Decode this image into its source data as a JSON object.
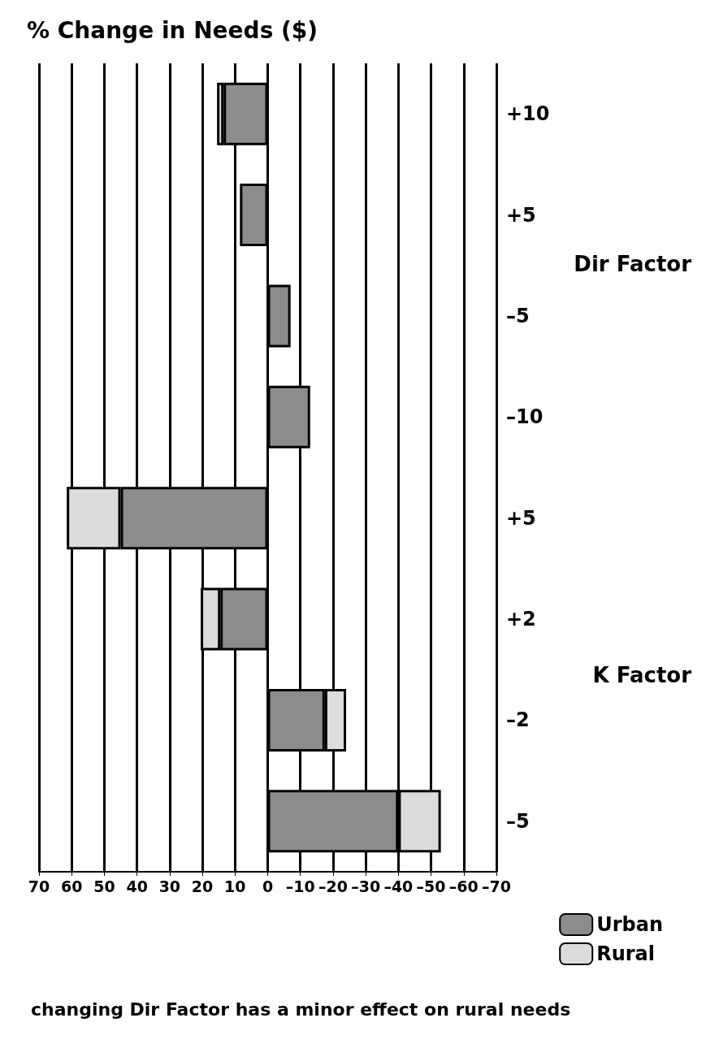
{
  "chart_data": {
    "type": "bar",
    "orientation": "horizontal",
    "stacked": true,
    "title": "% Change in Needs ($)",
    "categories": [
      "+10",
      "+5",
      "–5",
      "–10",
      "+5",
      "+2",
      "–2",
      "–5"
    ],
    "series": [
      {
        "name": "Urban",
        "color": "#8c8c8c",
        "values": [
          13.5,
          8.5,
          -7,
          -13,
          45,
          14.5,
          -17.5,
          -40
        ]
      },
      {
        "name": "Rural",
        "color": "#dcdcdc",
        "values": [
          2,
          null,
          null,
          null,
          16.5,
          6,
          -6.5,
          -13
        ]
      }
    ],
    "xlim": [
      70,
      -70
    ],
    "xticks": [
      70,
      60,
      50,
      40,
      30,
      20,
      10,
      0,
      {
        "value": -10,
        "label": "–10"
      },
      {
        "value": -20,
        "label": "–20"
      },
      {
        "value": -30,
        "label": "–30"
      },
      {
        "value": -40,
        "label": "–40"
      },
      {
        "value": -50,
        "label": "–50"
      },
      {
        "value": -60,
        "label": "–60"
      },
      {
        "value": -70,
        "label": "–70"
      }
    ],
    "grid": "x",
    "legend": "bottom right",
    "annotations": [
      "Dir Factor",
      "K Factor",
      "changing Dir Factor has a minor effect on rural needs"
    ]
  }
}
